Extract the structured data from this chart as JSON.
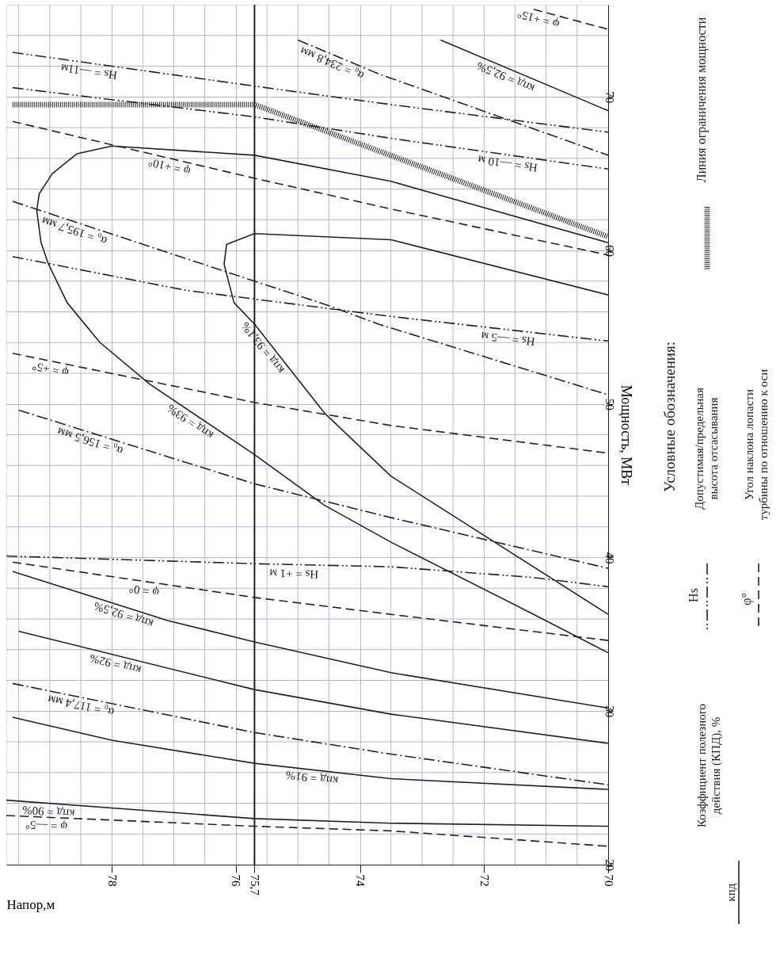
{
  "chart_data": {
    "type": "line",
    "xlabel": "Напор,м",
    "ylabel": "Мощность, МВт",
    "xlim": [
      79.7,
      70
    ],
    "ylim": [
      20,
      76
    ],
    "xticks": [
      {
        "value": 79.5,
        "label": null
      },
      {
        "value": 79,
        "label": null
      },
      {
        "value": 78.5,
        "label": null
      },
      78,
      {
        "value": 77.5,
        "label": null
      },
      {
        "value": 77,
        "label": null
      },
      {
        "value": 76.5,
        "label": null
      },
      76,
      {
        "value": 75.7,
        "label": "75,7"
      },
      {
        "value": 75.5,
        "label": null
      },
      {
        "value": 75,
        "label": null
      },
      {
        "value": 74.5,
        "label": null
      },
      74,
      {
        "value": 73.5,
        "label": null
      },
      {
        "value": 73,
        "label": null
      },
      {
        "value": 72.5,
        "label": null
      },
      72,
      {
        "value": 71.5,
        "label": null
      },
      {
        "value": 71,
        "label": null
      },
      {
        "value": 70.5,
        "label": null
      },
      70
    ],
    "yticks": [
      20,
      {
        "value": 22,
        "label": null
      },
      {
        "value": 24,
        "label": null
      },
      {
        "value": 26,
        "label": null
      },
      {
        "value": 28,
        "label": null
      },
      30,
      {
        "value": 32,
        "label": null
      },
      {
        "value": 34,
        "label": null
      },
      {
        "value": 36,
        "label": null
      },
      {
        "value": 38,
        "label": null
      },
      40,
      {
        "value": 42,
        "label": null
      },
      {
        "value": 44,
        "label": null
      },
      {
        "value": 46,
        "label": null
      },
      {
        "value": 48,
        "label": null
      },
      50,
      {
        "value": 52,
        "label": null
      },
      {
        "value": 54,
        "label": null
      },
      {
        "value": 56,
        "label": null
      },
      {
        "value": 58,
        "label": null
      },
      60,
      {
        "value": 62,
        "label": null
      },
      {
        "value": 64,
        "label": null
      },
      {
        "value": 66,
        "label": null
      },
      {
        "value": 68,
        "label": null
      },
      70,
      {
        "value": 72,
        "label": null
      },
      {
        "value": 74,
        "label": null
      }
    ],
    "grid": true,
    "ref_lines": [
      {
        "axis": "x",
        "value": 75.7,
        "color": "#222222",
        "line_style": "solid"
      }
    ],
    "series": [
      {
        "color": "#222222",
        "line_style": "dashed",
        "x": [
          71.2,
          70
        ],
        "values": [
          75.7,
          74.4
        ]
      },
      {
        "color": "#222222",
        "line_style": "solid",
        "x": [
          72.7,
          70
        ],
        "values": [
          73.7,
          69.1
        ]
      },
      {
        "color": "#222222",
        "line_style": "dashdot",
        "x": [
          75.0,
          73.7,
          70
        ],
        "values": [
          73.7,
          71.5,
          66.2
        ]
      },
      {
        "color": "#222222",
        "line_style": "dashdotdot",
        "x": [
          79.6,
          75.7,
          73.5,
          70
        ],
        "values": [
          72.9,
          70.7,
          69.5,
          67.7
        ]
      },
      {
        "color": "#222222",
        "line_style": "dashdotdot",
        "x": [
          79.6,
          75.7,
          73.5,
          70
        ],
        "values": [
          70.6,
          68.7,
          67.3,
          65.3
        ]
      },
      {
        "color": "#222222",
        "line_style": "hatched",
        "x": [
          79.6,
          75.7,
          70
        ],
        "values": [
          69.5,
          69.5,
          60.9
        ]
      },
      {
        "color": "#222222",
        "line_style": "dashed",
        "x": [
          79.6,
          75.7,
          73.5,
          70
        ],
        "values": [
          68.4,
          64.7,
          62.7,
          59.7
        ]
      },
      {
        "color": "#222222",
        "line_style": "solid",
        "x": [
          70,
          73.5,
          75.7,
          78.0,
          78.56,
          78.96,
          79.17,
          79.21,
          79.14,
          79.02,
          78.72,
          78.19,
          77.39,
          75.7,
          74.57,
          73.5,
          71.2,
          70
        ],
        "values": [
          60.5,
          64.5,
          66.2,
          66.8,
          66.3,
          65.0,
          63.7,
          62.6,
          60.5,
          59.1,
          56.6,
          54.0,
          51.3,
          46.7,
          43.4,
          41.0,
          36.3,
          33.8
        ]
      },
      {
        "color": "#222222",
        "line_style": "solid",
        "x": [
          70,
          73.5,
          75.7,
          76.15,
          76.19,
          76.03,
          75.7,
          74.57,
          73.5,
          70
        ],
        "values": [
          57.1,
          60.7,
          61.1,
          60.4,
          59.1,
          56.6,
          55.2,
          49.4,
          45.3,
          36.3
        ]
      },
      {
        "color": "#222222",
        "line_style": "dashdot",
        "x": [
          79.6,
          74.5,
          73.7,
          70
        ],
        "values": [
          63.2,
          56.4,
          55.2,
          50.6
        ]
      },
      {
        "color": "#222222",
        "line_style": "dashdotdot",
        "x": [
          79.6,
          76.8,
          73.5,
          70
        ],
        "values": [
          59.6,
          57.4,
          55.7,
          54.1
        ]
      },
      {
        "color": "#222222",
        "line_style": "dashed",
        "x": [
          79.6,
          75.7,
          73.5,
          70
        ],
        "values": [
          53.3,
          50.1,
          48.6,
          46.8
        ]
      },
      {
        "color": "#222222",
        "line_style": "dashdot",
        "x": [
          79.5,
          75.7,
          73.5,
          70
        ],
        "values": [
          49.6,
          44.8,
          42.6,
          39.3
        ]
      },
      {
        "color": "#222222",
        "line_style": "dashdotdot",
        "x": [
          79.7,
          75.7,
          73.5,
          71.2,
          70
        ],
        "values": [
          40.1,
          39.6,
          39.4,
          38.7,
          38.1
        ]
      },
      {
        "color": "#222222",
        "line_style": "dashed",
        "x": [
          79.6,
          75.7,
          73.5,
          70
        ],
        "values": [
          39.7,
          37.4,
          36.3,
          34.6
        ]
      },
      {
        "color": "#222222",
        "line_style": "solid",
        "x": [
          79.6,
          77.1,
          75.7,
          73.5,
          70
        ],
        "values": [
          39.1,
          35.9,
          34.5,
          32.5,
          30.2
        ]
      },
      {
        "color": "#222222",
        "line_style": "solid",
        "x": [
          79.5,
          75.7,
          73.5,
          70
        ],
        "values": [
          35.2,
          31.4,
          29.8,
          27.9
        ]
      },
      {
        "color": "#222222",
        "line_style": "dashdot",
        "x": [
          79.6,
          75.7,
          73.5,
          70
        ],
        "values": [
          31.8,
          28.6,
          27.2,
          25.2
        ]
      },
      {
        "color": "#222222",
        "line_style": "solid",
        "x": [
          79.6,
          78.0,
          75.7,
          73.5,
          70
        ],
        "values": [
          29.6,
          28.1,
          26.6,
          25.6,
          24.9
        ]
      },
      {
        "color": "#222222",
        "line_style": "solid",
        "x": [
          79.7,
          75.7,
          73.5,
          70
        ],
        "values": [
          24.2,
          23.0,
          22.7,
          22.5
        ]
      },
      {
        "color": "#222222",
        "line_style": "dashed",
        "x": [
          79.7,
          75.7,
          73.5,
          70
        ],
        "values": [
          23.2,
          22.5,
          22.2,
          21.2
        ]
      }
    ],
    "annotations": [
      {
        "text": "кпд = 92,5%",
        "x": 71.6,
        "y": 71.8
      },
      {
        "text": "α₀ = 234,8 мм",
        "x": 74.4,
        "y": 72.7
      },
      {
        "text": "Hs = —11м",
        "x": 78.35,
        "y": 72.2
      },
      {
        "text": "Hs = —10 м",
        "x": 71.6,
        "y": 66.2
      },
      {
        "text": "φ = +10°",
        "x": 77.04,
        "y": 66.0
      },
      {
        "text": "φ = +15°",
        "x": 71.09,
        "y": 75.6
      },
      {
        "text": "α₀ = 195,7 мм",
        "x": 78.56,
        "y": 61.8
      },
      {
        "text": "кпд = 93,1%",
        "x": 75.46,
        "y": 54.0
      },
      {
        "text": "кпд = 93%",
        "x": 76.66,
        "y": 49.3
      },
      {
        "text": "φ = +5°",
        "x": 78.96,
        "y": 52.8
      },
      {
        "text": "α₀ = 156,5 мм",
        "x": 78.31,
        "y": 48.1
      },
      {
        "text": "Hs = —5 м",
        "x": 71.6,
        "y": 54.8
      },
      {
        "text": "Hs = +1 м",
        "x": 75.06,
        "y": 39.5
      },
      {
        "text": "φ = 0°",
        "x": 77.46,
        "y": 38.4
      },
      {
        "text": "кпд = 92,5%",
        "x": 77.77,
        "y": 36.8
      },
      {
        "text": "кпд = 92%",
        "x": 77.91,
        "y": 33.6
      },
      {
        "text": "α₀ = 117,4 мм",
        "x": 78.47,
        "y": 30.9
      },
      {
        "text": "кпд = 91%",
        "x": 74.76,
        "y": 26.2
      },
      {
        "text": "кпд = 90%",
        "x": 79.01,
        "y": 24.0
      },
      {
        "text": "φ = —5°",
        "x": 79.05,
        "y": 23.1
      },
      "Условные обозначения:",
      "Hs",
      "Допустимая/предельная высота отсасывания",
      "φ°",
      "Угол наклона лопасти турбины по отношению к оси",
      "Линия ограничения мощности",
      "кпд",
      "Коэффициент полезного действия (КПД), %"
    ]
  }
}
